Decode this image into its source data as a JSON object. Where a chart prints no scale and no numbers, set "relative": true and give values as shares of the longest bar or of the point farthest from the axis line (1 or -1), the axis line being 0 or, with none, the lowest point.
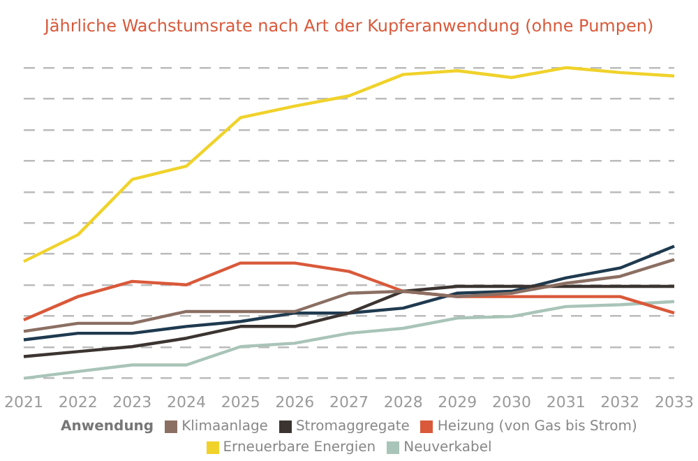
{
  "chart_data": {
    "type": "line",
    "title": "Jährliche Wachstumsrate nach Art der Kupferanwendung (ohne Pumpen)",
    "legend_title": "Anwendung",
    "relative": true,
    "grid": "y",
    "legend": "bottom",
    "marker": "none",
    "line_style": "solid",
    "categories": [
      "2021",
      "2022",
      "2023",
      "2024",
      "2025",
      "2026",
      "2027",
      "2028",
      "2029",
      "2030",
      "2031",
      "2032",
      "2033"
    ],
    "series": [
      {
        "name": "Klimaanlage",
        "color": "#8b6f63",
        "values": [
          0.151,
          0.177,
          0.177,
          0.215,
          0.215,
          0.215,
          0.274,
          0.28,
          0.263,
          0.274,
          0.306,
          0.328,
          0.382
        ]
      },
      {
        "name": "Stromaggregate",
        "color": "#3b3431",
        "values": [
          0.07,
          0.086,
          0.102,
          0.129,
          0.167,
          0.167,
          0.21,
          0.28,
          0.296,
          0.296,
          0.296,
          0.296,
          0.296
        ]
      },
      {
        "name": "Heizung (von Gas bis Strom)",
        "color": "#d9593a",
        "values": [
          0.188,
          0.263,
          0.312,
          0.301,
          0.371,
          0.371,
          0.344,
          0.28,
          0.263,
          0.263,
          0.263,
          0.263,
          0.21
        ]
      },
      {
        "name": "Erneuerbare Energien",
        "color": "#f0d22a",
        "values": [
          0.376,
          0.462,
          0.64,
          0.683,
          0.839,
          0.876,
          0.909,
          0.978,
          0.99,
          0.968,
          1,
          0.984,
          0.973
        ]
      },
      {
        "name": "Neuverkabel",
        "color": "#a9c4b8",
        "values": [
          0,
          0.022,
          0.043,
          0.043,
          0.102,
          0.113,
          0.145,
          0.161,
          0.194,
          0.199,
          0.231,
          0.237,
          0.247
        ]
      },
      {
        "color": "#1f3a4f",
        "values": [
          0.124,
          0.145,
          0.145,
          0.167,
          0.183,
          0.21,
          0.21,
          0.226,
          0.274,
          0.28,
          0.323,
          0.355,
          0.425
        ]
      }
    ]
  }
}
